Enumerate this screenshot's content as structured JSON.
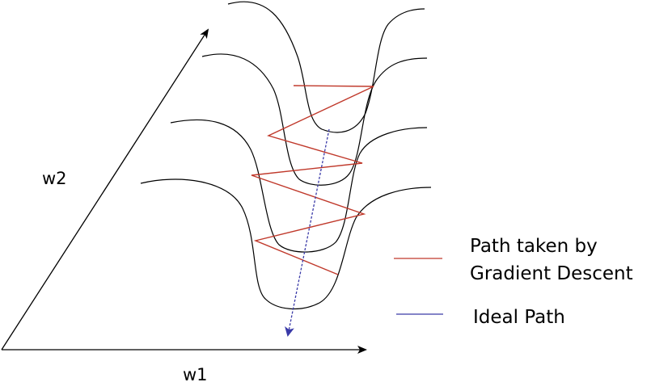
{
  "axes": {
    "x_label": "w1",
    "y_label": "w2"
  },
  "legend": {
    "items": [
      {
        "lines": [
          "Path taken by",
          "Gradient Descent"
        ],
        "color": "#c0392b"
      },
      {
        "lines": [
          "Ideal Path"
        ],
        "color": "#3a3aa8"
      }
    ]
  },
  "colors": {
    "contour": "#000000",
    "axis": "#000000",
    "gradient_path": "#c0392b",
    "ideal_path": "#3a3aa8"
  }
}
